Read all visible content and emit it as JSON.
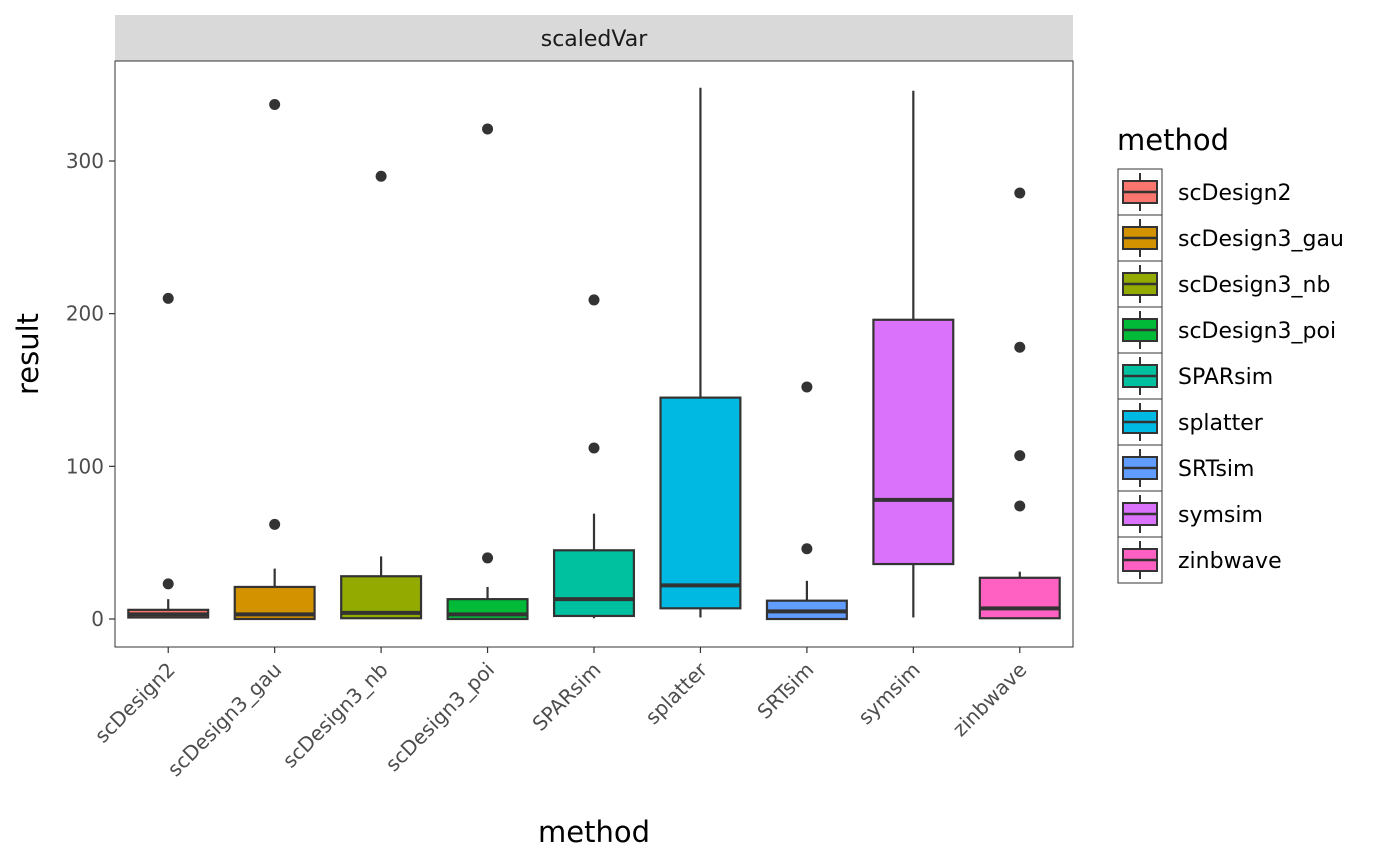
{
  "chart_data": {
    "type": "box",
    "strip_label": "scaledVar",
    "xlabel": "method",
    "ylabel": "result",
    "ylim": [
      -18,
      362
    ],
    "yticks": [
      0,
      100,
      200,
      300
    ],
    "categories": [
      "scDesign2",
      "scDesign3_gau",
      "scDesign3_nb",
      "scDesign3_poi",
      "SPARsim",
      "splatter",
      "SRTsim",
      "symsim",
      "zinbwave"
    ],
    "colors": [
      "#F8766D",
      "#D39200",
      "#93AA00",
      "#00BA38",
      "#00C19F",
      "#00B9E3",
      "#619CFF",
      "#DB72FB",
      "#FF61C3"
    ],
    "boxes": [
      {
        "min": 0.5,
        "q1": 1,
        "median": 3,
        "q3": 6,
        "max": 13,
        "outliers": [
          23,
          210
        ]
      },
      {
        "min": 0,
        "q1": 0,
        "median": 3,
        "q3": 21,
        "max": 33,
        "outliers": [
          62,
          337
        ]
      },
      {
        "min": 0,
        "q1": 0.5,
        "median": 4,
        "q3": 28,
        "max": 41,
        "outliers": [
          290
        ]
      },
      {
        "min": 0,
        "q1": 0,
        "median": 3,
        "q3": 13,
        "max": 21,
        "outliers": [
          40,
          321
        ]
      },
      {
        "min": 0.5,
        "q1": 2,
        "median": 13,
        "q3": 45,
        "max": 69,
        "outliers": [
          112,
          209
        ]
      },
      {
        "min": 1,
        "q1": 7,
        "median": 22,
        "q3": 145,
        "max": 348,
        "outliers": []
      },
      {
        "min": 0,
        "q1": 0,
        "median": 5,
        "q3": 12,
        "max": 25,
        "outliers": [
          46,
          152
        ]
      },
      {
        "min": 1,
        "q1": 36,
        "median": 78,
        "q3": 196,
        "max": 346,
        "outliers": []
      },
      {
        "min": 0,
        "q1": 0.5,
        "median": 7,
        "q3": 27,
        "max": 31,
        "outliers": [
          74,
          107,
          178,
          279
        ]
      }
    ],
    "legend": {
      "title": "method",
      "position": "right",
      "entries": [
        "scDesign2",
        "scDesign3_gau",
        "scDesign3_nb",
        "scDesign3_poi",
        "SPARsim",
        "splatter",
        "SRTsim",
        "symsim",
        "zinbwave"
      ]
    },
    "grid": false
  }
}
